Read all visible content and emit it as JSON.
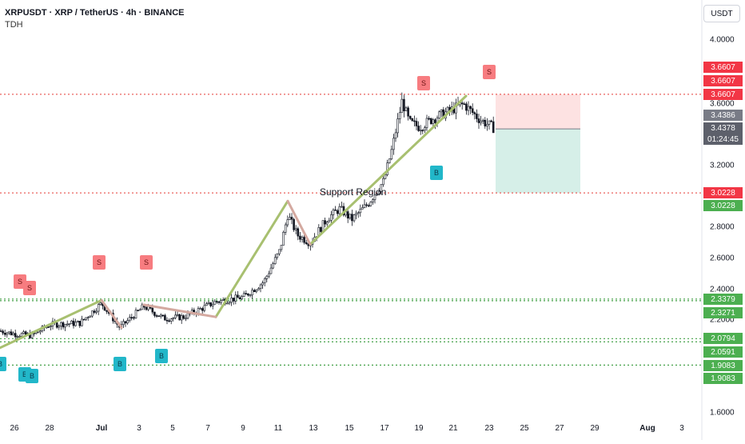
{
  "header": {
    "title": "XRPUSDT · XRP / TetherUS · 4h · BINANCE",
    "indicator": "TDH"
  },
  "axis": {
    "unit": "USDT",
    "y_ticks": [
      "4.0000",
      "3.6000",
      "3.2000",
      "2.8000",
      "2.6000",
      "2.4000",
      "2.2000",
      "1.6000"
    ],
    "x_ticks": [
      "26",
      "28",
      "Jul",
      "3",
      "5",
      "7",
      "9",
      "11",
      "13",
      "15",
      "17",
      "19",
      "21",
      "23",
      "25",
      "27",
      "29",
      "Aug",
      "3"
    ]
  },
  "price_tags": {
    "red": [
      "3.6607",
      "3.6607",
      "3.6607",
      "3.0228"
    ],
    "gray": [
      "3.4386",
      "3.4378"
    ],
    "timer": "01:24:45",
    "green": [
      "3.0228",
      "2.3379",
      "2.3271",
      "2.0794",
      "2.0591",
      "1.9083",
      "1.9083"
    ]
  },
  "annotation": {
    "label": "Support Region"
  },
  "markers": {
    "sell_letter": "S",
    "buy_letter": "B"
  },
  "colors": {
    "bull": "#26a69a",
    "bear": "#ef5350",
    "candle": "#131722",
    "trend_up": "#a8c070",
    "trend_down": "#d4a9a0",
    "stop_zone": "#fde2e2",
    "target_zone": "#d6efe8",
    "resistance": "#e53935",
    "support": "#43a047"
  },
  "chart_data": {
    "type": "candlestick",
    "symbol": "XRPUSDT",
    "timeframe": "4h",
    "exchange": "BINANCE",
    "ylim": [
      1.55,
      4.1
    ],
    "last_price": 3.4378,
    "levels": {
      "resistance": 3.6607,
      "entry": 3.4386,
      "support_stop": 3.0228,
      "support_lines": [
        2.3379,
        2.3271,
        2.0794,
        2.0591,
        1.9083
      ]
    },
    "path": [
      [
        "Jun 24",
        2.13
      ],
      [
        "Jun 26",
        2.11
      ],
      [
        "Jun 28",
        2.17
      ],
      [
        "Jun 30",
        2.18
      ],
      [
        "Jul 1",
        2.31
      ],
      [
        "Jul 2",
        2.16
      ],
      [
        "Jul 3",
        2.28
      ],
      [
        "Jul 4",
        2.22
      ],
      [
        "Jul 5",
        2.22
      ],
      [
        "Jul 6",
        2.22
      ],
      [
        "Jul 7",
        2.32
      ],
      [
        "Jul 9",
        2.36
      ],
      [
        "Jul 10",
        2.52
      ],
      [
        "Jul 11",
        2.85
      ],
      [
        "Jul 12",
        2.75
      ],
      [
        "Jul 13",
        2.78
      ],
      [
        "Jul 14",
        2.9
      ],
      [
        "Jul 15",
        2.92
      ],
      [
        "Jul 16",
        2.98
      ],
      [
        "Jul 17",
        3.1
      ],
      [
        "Jul 18",
        3.55
      ],
      [
        "Jul 19",
        3.45
      ],
      [
        "Jul 20",
        3.48
      ],
      [
        "Jul 21",
        3.55
      ],
      [
        "Jul 22",
        3.5
      ],
      [
        "Jul 23",
        3.44
      ]
    ]
  }
}
